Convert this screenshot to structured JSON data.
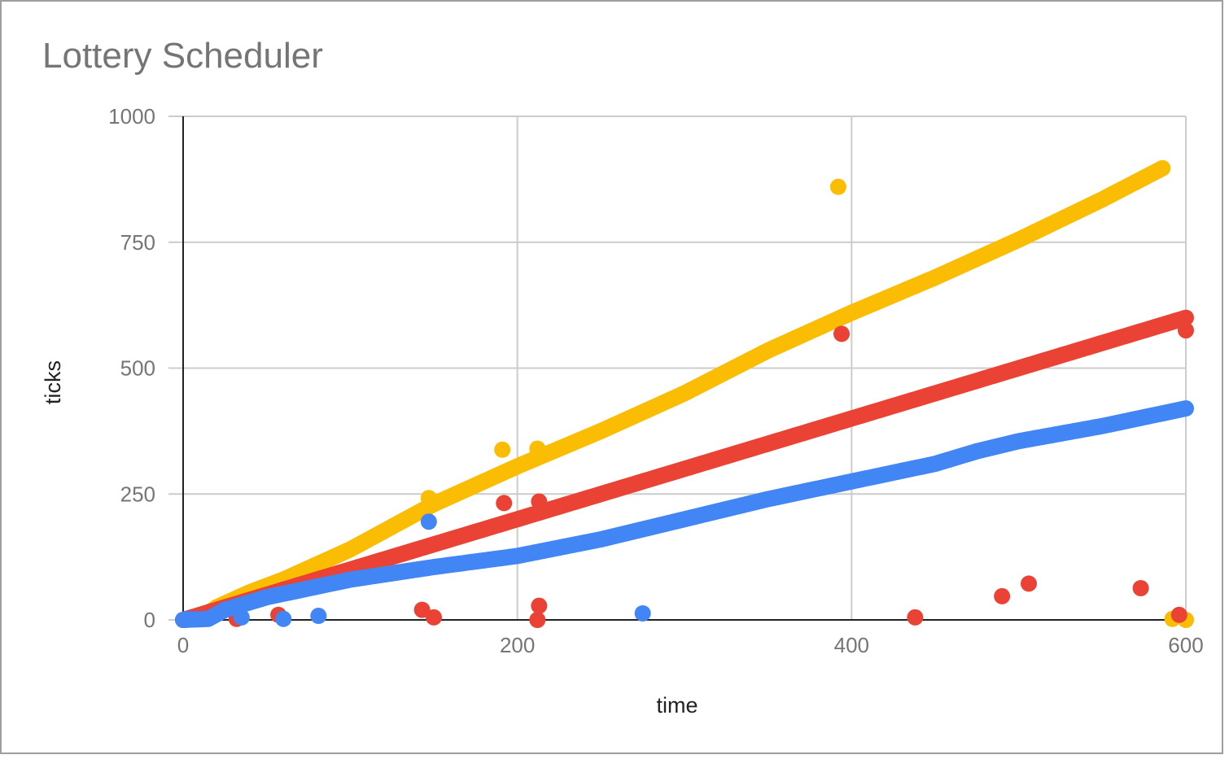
{
  "chart_data": {
    "type": "scatter",
    "title": "Lottery Scheduler",
    "xlabel": "time",
    "ylabel": "ticks",
    "xlim": [
      0,
      600
    ],
    "ylim": [
      0,
      1000
    ],
    "x_ticks": [
      "0",
      "200",
      "400",
      "600"
    ],
    "y_ticks": [
      "0",
      "250",
      "500",
      "750",
      "1000"
    ],
    "grid": true,
    "legend": "none",
    "series": [
      {
        "color": "#fbbc04",
        "points": [
          [
            0,
            0
          ],
          [
            10,
            2
          ],
          [
            20,
            25
          ],
          [
            40,
            55
          ],
          [
            60,
            80
          ],
          [
            100,
            140
          ],
          [
            150,
            230
          ],
          [
            200,
            305
          ],
          [
            250,
            375
          ],
          [
            300,
            450
          ],
          [
            350,
            535
          ],
          [
            400,
            610
          ],
          [
            450,
            680
          ],
          [
            500,
            755
          ],
          [
            550,
            835
          ],
          [
            586,
            897
          ]
        ],
        "outliers": [
          [
            147,
            242
          ],
          [
            191,
            338
          ],
          [
            212,
            340
          ],
          [
            392,
            860
          ],
          [
            592,
            2
          ],
          [
            600,
            0
          ]
        ]
      },
      {
        "color": "#ea4335",
        "points": [
          [
            0,
            0
          ],
          [
            50,
            50
          ],
          [
            100,
            100
          ],
          [
            150,
            150
          ],
          [
            200,
            200
          ],
          [
            250,
            250
          ],
          [
            300,
            300
          ],
          [
            350,
            350
          ],
          [
            400,
            400
          ],
          [
            450,
            450
          ],
          [
            500,
            500
          ],
          [
            550,
            550
          ],
          [
            600,
            600
          ]
        ],
        "outliers": [
          [
            32,
            2
          ],
          [
            57,
            10
          ],
          [
            143,
            20
          ],
          [
            150,
            5
          ],
          [
            192,
            232
          ],
          [
            212,
            0
          ],
          [
            213,
            28
          ],
          [
            213,
            235
          ],
          [
            394,
            568
          ],
          [
            438,
            5
          ],
          [
            490,
            47
          ],
          [
            506,
            72
          ],
          [
            573,
            63
          ],
          [
            596,
            10
          ],
          [
            600,
            575
          ]
        ]
      },
      {
        "color": "#4285f4",
        "points": [
          [
            0,
            0
          ],
          [
            15,
            2
          ],
          [
            25,
            20
          ],
          [
            50,
            45
          ],
          [
            100,
            80
          ],
          [
            150,
            105
          ],
          [
            200,
            127
          ],
          [
            250,
            160
          ],
          [
            300,
            200
          ],
          [
            350,
            240
          ],
          [
            400,
            275
          ],
          [
            450,
            310
          ],
          [
            475,
            335
          ],
          [
            500,
            355
          ],
          [
            550,
            385
          ],
          [
            600,
            420
          ]
        ],
        "outliers": [
          [
            2,
            2
          ],
          [
            35,
            5
          ],
          [
            60,
            2
          ],
          [
            81,
            8
          ],
          [
            147,
            195
          ],
          [
            275,
            13
          ]
        ]
      }
    ]
  }
}
